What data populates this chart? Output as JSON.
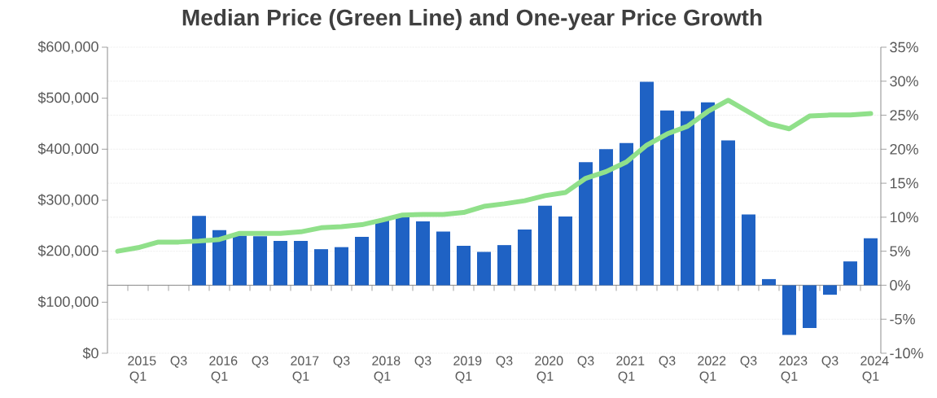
{
  "chart_data": {
    "type": "bar",
    "title": "Median Price (Green Line) and One-year Price Growth",
    "categories": [
      null,
      "2015 Q1",
      null,
      "Q3",
      null,
      "2016 Q1",
      null,
      "Q3",
      null,
      "2017 Q1",
      null,
      "Q3",
      null,
      "2018 Q1",
      null,
      "Q3",
      null,
      "2019 Q1",
      null,
      "Q3",
      null,
      "2020 Q1",
      null,
      "Q3",
      null,
      "2021 Q1",
      null,
      "Q3",
      null,
      "2022 Q1",
      null,
      "Q3",
      null,
      "2023 Q1",
      null,
      "Q3",
      null,
      "2024 Q1"
    ],
    "series": [
      {
        "axis": "y2",
        "color": "#1f62c4",
        "values": [
          null,
          null,
          null,
          null,
          10.2,
          8.1,
          7.3,
          7.2,
          6.5,
          6.5,
          5.3,
          5.6,
          7.1,
          9.5,
          10.0,
          9.4,
          7.9,
          5.8,
          4.9,
          5.9,
          8.2,
          11.7,
          10.1,
          18.1,
          20.0,
          20.9,
          29.9,
          25.7,
          25.6,
          26.9,
          21.3,
          10.4,
          0.9,
          -7.3,
          -6.3,
          -1.4,
          3.5,
          6.9
        ]
      },
      {
        "type": "line",
        "color": "#90e08a",
        "values": [
          200000,
          207000,
          218000,
          218000,
          220000,
          223000,
          235000,
          235000,
          235000,
          238000,
          246000,
          248000,
          252000,
          261000,
          271000,
          272000,
          272000,
          276000,
          288000,
          293000,
          299000,
          309000,
          315000,
          343000,
          356000,
          375000,
          408000,
          430000,
          445000,
          474000,
          496000,
          473000,
          450000,
          440000,
          465000,
          467000,
          467000,
          470000
        ]
      }
    ],
    "ylim": [
      0,
      600000
    ],
    "yticks": [
      {
        "value": 0,
        "label": "$0"
      },
      {
        "value": 100000,
        "label": "$100,000"
      },
      {
        "value": 200000,
        "label": "$200,000"
      },
      {
        "value": 300000,
        "label": "$300,000"
      },
      {
        "value": 400000,
        "label": "$400,000"
      },
      {
        "value": 500000,
        "label": "$500,000"
      },
      {
        "value": 600000,
        "label": "$600,000"
      }
    ],
    "y2lim": [
      -10,
      35
    ],
    "y2ticks": [
      {
        "value": -10,
        "label": "-10%"
      },
      {
        "value": -5,
        "label": "-5%"
      },
      {
        "value": 0,
        "label": "0%"
      },
      {
        "value": 5,
        "label": "5%"
      },
      {
        "value": 10,
        "label": "10%"
      },
      {
        "value": 15,
        "label": "15%"
      },
      {
        "value": 20,
        "label": "20%"
      },
      {
        "value": 25,
        "label": "25%"
      },
      {
        "value": 30,
        "label": "30%"
      },
      {
        "value": 35,
        "label": "35%"
      }
    ],
    "grid": true
  }
}
